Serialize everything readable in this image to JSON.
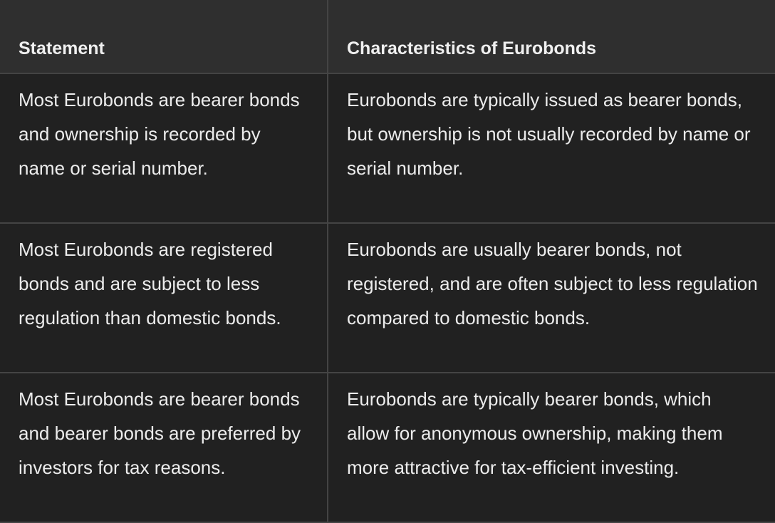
{
  "table": {
    "headers": [
      "Statement",
      "Characteristics of Eurobonds"
    ],
    "rows": [
      [
        "Most Eurobonds are bearer bonds and ownership is recorded by name or serial number.",
        "Eurobonds are typically issued as bearer bonds, but ownership is not usually recorded by name or serial number."
      ],
      [
        "Most Eurobonds are registered bonds and are subject to less regulation than domestic bonds.",
        "Eurobonds are usually bearer bonds, not registered, and are often subject to less regulation compared to domestic bonds."
      ],
      [
        "Most Eurobonds are bearer bonds and bearer bonds are preferred by investors for tax reasons.",
        "Eurobonds are typically bearer bonds, which allow for anonymous ownership, making them more attractive for tax-efficient investing."
      ]
    ]
  }
}
